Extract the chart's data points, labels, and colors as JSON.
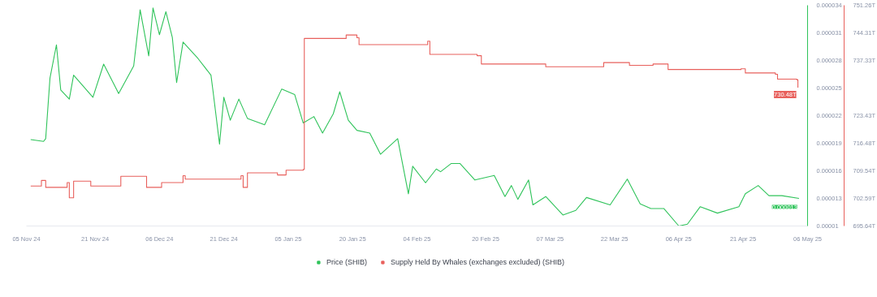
{
  "chart_data": {
    "type": "line",
    "legend": "bottom",
    "grid": false,
    "xlim": [
      "2024-11-05",
      "2025-05-06"
    ],
    "xticks": [
      {
        "value": "2024-11-05",
        "label": "05 Nov 24"
      },
      {
        "value": "2024-11-21",
        "label": "21 Nov 24"
      },
      {
        "value": "2024-12-06",
        "label": "06 Dec 24"
      },
      {
        "value": "2024-12-21",
        "label": "21 Dec 24"
      },
      {
        "value": "2025-01-05",
        "label": "05 Jan 25"
      },
      {
        "value": "2025-01-20",
        "label": "20 Jan 25"
      },
      {
        "value": "2025-02-04",
        "label": "04 Feb 25"
      },
      {
        "value": "2025-02-20",
        "label": "20 Feb 25"
      },
      {
        "value": "2025-03-07",
        "label": "07 Mar 25"
      },
      {
        "value": "2025-03-22",
        "label": "22 Mar 25"
      },
      {
        "value": "2025-04-06",
        "label": "06 Apr 25"
      },
      {
        "value": "2025-04-21",
        "label": "21 Apr 25"
      },
      {
        "value": "2025-05-06",
        "label": "06 May 25"
      }
    ],
    "ylim": [
      1e-05,
      3.4e-05
    ],
    "yticks": [
      {
        "value": 1e-05,
        "label": "0.00001"
      },
      {
        "value": 1.3e-05,
        "label": "0.000013"
      },
      {
        "value": 1.6e-05,
        "label": "0.000016"
      },
      {
        "value": 1.9e-05,
        "label": "0.000019"
      },
      {
        "value": 2.2e-05,
        "label": "0.000022"
      },
      {
        "value": 2.5e-05,
        "label": "0.000025"
      },
      {
        "value": 2.8e-05,
        "label": "0.000028"
      },
      {
        "value": 3.1e-05,
        "label": "0.000031"
      },
      {
        "value": 3.4e-05,
        "label": "0.000034"
      }
    ],
    "y2lim": [
      695.64,
      751.26
    ],
    "y2ticks": [
      {
        "value": 695.64,
        "label": "695.64T"
      },
      {
        "value": 702.59,
        "label": "702.59T"
      },
      {
        "value": 709.54,
        "label": "709.54T"
      },
      {
        "value": 716.48,
        "label": "716.48T"
      },
      {
        "value": 723.43,
        "label": "723.43T"
      },
      {
        "value": 737.33,
        "label": "737.33T"
      },
      {
        "value": 744.31,
        "label": "744.31T"
      },
      {
        "value": 751.26,
        "label": "751.26T"
      }
    ],
    "annotations": [
      "0.000013",
      "730.48T"
    ],
    "series": [
      {
        "name": "Price (SHIB)",
        "color": "#2fc35a",
        "x": [
          "2024-11-06",
          "2024-11-09",
          "2024-11-09T12:00",
          "2024-11-10T12:00",
          "2024-11-12",
          "2024-11-13",
          "2024-11-15",
          "2024-11-16",
          "2024-11-20T12:00",
          "2024-11-23",
          "2024-11-26T12:00",
          "2024-11-30",
          "2024-12-01T12:00",
          "2024-12-03T12:00",
          "2024-12-04T12:00",
          "2024-12-06",
          "2024-12-07T12:00",
          "2024-12-09",
          "2024-12-10",
          "2024-12-11T12:00",
          "2024-12-15",
          "2024-12-18",
          "2024-12-18T12:00",
          "2024-12-20",
          "2024-12-21",
          "2024-12-22T12:00",
          "2024-12-24T12:00",
          "2024-12-26T12:00",
          "2024-12-30T12:00",
          "2025-01-03T12:00",
          "2025-01-06T12:00",
          "2025-01-08T12:00",
          "2025-01-11",
          "2025-01-13",
          "2025-01-15T12:00",
          "2025-01-17",
          "2025-01-19",
          "2025-01-21",
          "2025-01-24",
          "2025-01-26T12:00",
          "2025-01-30T12:00",
          "2025-02-02",
          "2025-02-03",
          "2025-02-06",
          "2025-02-08T12:00",
          "2025-02-09T12:00",
          "2025-02-12",
          "2025-02-14",
          "2025-02-17T12:00",
          "2025-02-22",
          "2025-02-24T12:00",
          "2025-02-26",
          "2025-02-27T12:00",
          "2025-03-02",
          "2025-03-03",
          "2025-03-06",
          "2025-03-10",
          "2025-03-13",
          "2025-03-15T12:00",
          "2025-03-21",
          "2025-03-25",
          "2025-03-28",
          "2025-03-30T12:00",
          "2025-04-02T12:00",
          "2025-04-06",
          "2025-04-08",
          "2025-04-11",
          "2025-04-15",
          "2025-04-20",
          "2025-04-21T12:00",
          "2025-04-24T12:00",
          "2025-04-27",
          "2025-04-30",
          "2025-05-04"
        ],
        "values": [
          1.94e-05,
          1.92e-05,
          1.95e-05,
          2.61e-05,
          2.97e-05,
          2.48e-05,
          2.38e-05,
          2.64e-05,
          2.4e-05,
          2.76e-05,
          2.44e-05,
          2.74e-05,
          3.35e-05,
          2.85e-05,
          3.37e-05,
          3.08e-05,
          3.33e-05,
          3.05e-05,
          2.56e-05,
          3e-05,
          2.82e-05,
          2.64e-05,
          2.46e-05,
          1.89e-05,
          2.4e-05,
          2.15e-05,
          2.38e-05,
          2.17e-05,
          2.1e-05,
          2.49e-05,
          2.43e-05,
          2.12e-05,
          2.19e-05,
          2.01e-05,
          2.22e-05,
          2.46e-05,
          2.15e-05,
          2.04e-05,
          2.01e-05,
          1.78e-05,
          1.95e-05,
          1.35e-05,
          1.65e-05,
          1.47e-05,
          1.62e-05,
          1.59e-05,
          1.68e-05,
          1.68e-05,
          1.5e-05,
          1.55e-05,
          1.32e-05,
          1.44e-05,
          1.29e-05,
          1.5e-05,
          1.23e-05,
          1.32e-05,
          1.12e-05,
          1.17e-05,
          1.31e-05,
          1.23e-05,
          1.51e-05,
          1.24e-05,
          1.19e-05,
          1.19e-05,
          1e-05,
          1.02e-05,
          1.21e-05,
          1.14e-05,
          1.21e-05,
          1.35e-05,
          1.44e-05,
          1.33e-05,
          1.33e-05,
          1.3e-05
        ]
      },
      {
        "name": "Supply Held By Whales (exchanges excluded) (SHIB)",
        "color": "#e8605c",
        "type": "step",
        "axis": "y2",
        "x": [
          "2024-11-06",
          "2024-11-08T12:00",
          "2024-11-09T12:00",
          "2024-11-14T12:00",
          "2024-11-15",
          "2024-11-16",
          "2024-11-20",
          "2024-11-27",
          "2024-12-03",
          "2024-12-06T12:00",
          "2024-12-11T12:00",
          "2024-12-12",
          "2024-12-25",
          "2024-12-25T12:00",
          "2024-12-26T12:00",
          "2025-01-02T12:00",
          "2025-01-04T12:00",
          "2025-01-08T12:00",
          "2025-01-08T18:00",
          "2025-01-18T12:00",
          "2025-01-21",
          "2025-01-21T12:00",
          "2025-02-06T12:00",
          "2025-02-07",
          "2025-02-18",
          "2025-02-19",
          "2025-03-05T12:00",
          "2025-03-06",
          "2025-03-19T12:00",
          "2025-03-25T12:00",
          "2025-03-31",
          "2025-04-03T12:00",
          "2025-04-20T12:00",
          "2025-04-21T12:00",
          "2025-04-28T12:00",
          "2025-04-29",
          "2025-05-03T12:00",
          "2025-05-03T18:00"
        ],
        "values": [
          705.72,
          707.11,
          705.37,
          706.59,
          702.76,
          706.93,
          705.72,
          708.15,
          705.37,
          706.59,
          708.32,
          707.46,
          708.32,
          705.37,
          709.02,
          708.5,
          709.71,
          709.89,
          742.9,
          743.77,
          743.07,
          741.34,
          742.21,
          738.9,
          738.56,
          736.47,
          736.47,
          735.78,
          736.82,
          736.12,
          736.47,
          735.08,
          735.26,
          734.21,
          733.87,
          732.64,
          732.48,
          730.48
        ]
      }
    ]
  }
}
